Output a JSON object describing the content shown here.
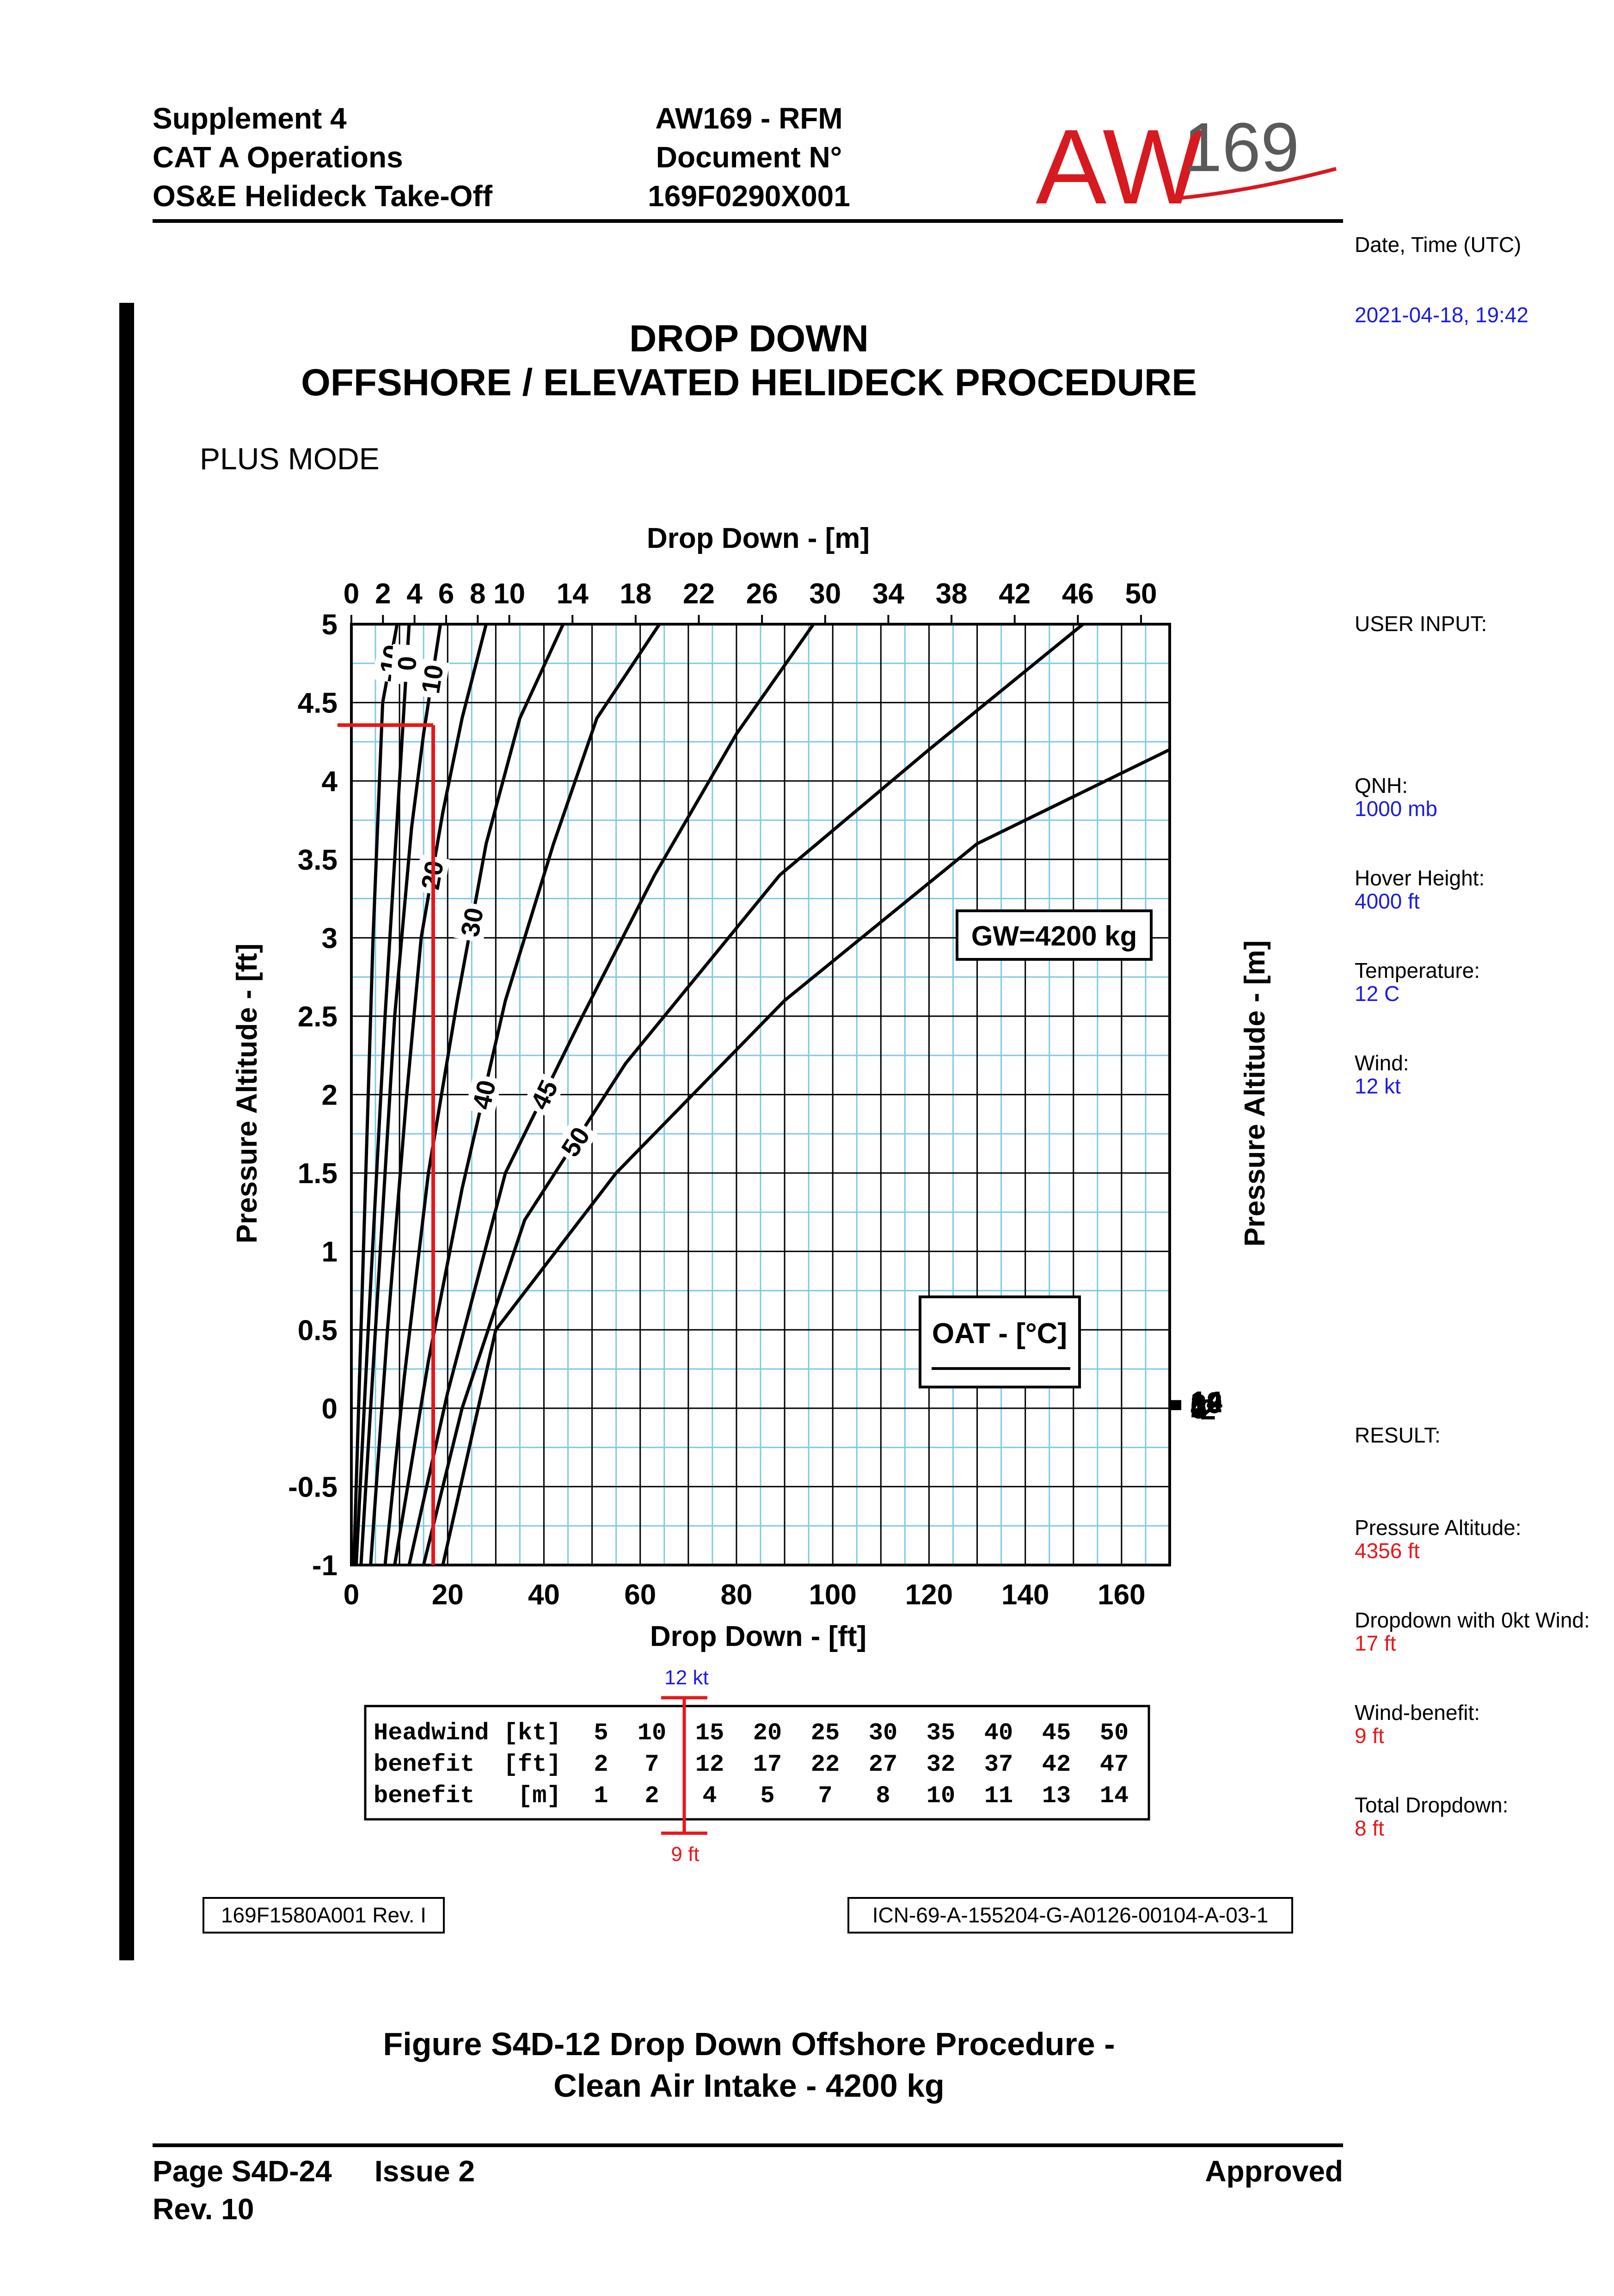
{
  "header": {
    "left": [
      "Supplement 4",
      "CAT A Operations",
      "OS&E Helideck Take-Off"
    ],
    "center": [
      "AW169 - RFM",
      "Document N°",
      "169F0290X001"
    ],
    "logo_main": "AW",
    "logo_sub": "169"
  },
  "chart_title": {
    "line1": "DROP DOWN",
    "line2": "OFFSHORE / ELEVATED HELIDECK PROCEDURE",
    "mode": "PLUS MODE"
  },
  "sidebar": {
    "date_label": "Date, Time (UTC)",
    "date_value": "2021-04-18, 19:42",
    "user_input_label": "USER INPUT:",
    "qnh_label": "QNH:",
    "qnh_value": "1000 mb",
    "hover_label": "Hover Height:",
    "hover_value": "4000 ft",
    "temp_label": "Temperature:",
    "temp_value": "12 C",
    "wind_label": "Wind:",
    "wind_value": "12 kt",
    "result_label": "RESULT:",
    "pa_label": "Pressure Altitude:",
    "pa_value": "4356 ft",
    "dd0_label": "Dropdown with 0kt Wind:",
    "dd0_value": "17 ft",
    "wb_label": "Wind-benefit:",
    "wb_value": "9 ft",
    "total_label": "Total Dropdown:",
    "total_value": "8 ft"
  },
  "headwind_table": {
    "rows": [
      {
        "label": "Headwind [kt]",
        "values": [
          "5",
          "10",
          "15",
          "20",
          "25",
          "30",
          "35",
          "40",
          "45",
          "50"
        ]
      },
      {
        "label": "benefit  [ft]",
        "values": [
          "2",
          "7",
          "12",
          "17",
          "22",
          "27",
          "32",
          "37",
          "42",
          "47"
        ]
      },
      {
        "label": "benefit   [m]",
        "values": [
          "1",
          "2",
          "4",
          "5",
          "7",
          "8",
          "10",
          "11",
          "13",
          "14"
        ]
      }
    ],
    "marker_top_label": "12 kt",
    "marker_bottom_label": "9 ft"
  },
  "refs": {
    "left": "169F1580A001 Rev. I",
    "right": "ICN-69-A-155204-G-A0126-00104-A-03-1"
  },
  "figure_caption": {
    "line1": "Figure S4D-12  Drop Down Offshore Procedure -",
    "line2": "Clean Air Intake - 4200 kg"
  },
  "footer": {
    "page": "Page S4D-24",
    "issue": "Issue 2",
    "rev": "Rev. 10",
    "status": "Approved"
  },
  "colors": {
    "accent_blue": "#1a1ae6",
    "accent_red": "#e8161b",
    "grid_minor": "#7ec8ea",
    "logo_red": "#d71920"
  },
  "chart_data": {
    "type": "line",
    "top_axis_label": "Drop Down - [m]",
    "xlabel": "Drop Down - [ft]",
    "ylabel": "Pressure Altitude - [ft]",
    "right_axis_label": "Pressure Altitude - [m]",
    "xlim": [
      0,
      170
    ],
    "ylim": [
      -1,
      5
    ],
    "x_ticks": [
      "0",
      "20",
      "40",
      "60",
      "80",
      "100",
      "120",
      "140",
      "160"
    ],
    "x_tick_values": [
      0,
      20,
      40,
      60,
      80,
      100,
      120,
      140,
      160
    ],
    "y_ticks": [
      "-1",
      "-0.5",
      "0",
      "0.5",
      "1",
      "1.5",
      "2",
      "2.5",
      "3",
      "3.5",
      "4",
      "4.5",
      "5"
    ],
    "y_tick_values": [
      -1,
      -0.5,
      0,
      0.5,
      1,
      1.5,
      2,
      2.5,
      3,
      3.5,
      4,
      4.5,
      5
    ],
    "top_ticks": [
      "0",
      "2",
      "4",
      "6",
      "8",
      "10",
      "14",
      "18",
      "22",
      "26",
      "30",
      "34",
      "38",
      "42",
      "46",
      "50"
    ],
    "top_tick_values": [
      0,
      2,
      4,
      6,
      8,
      10,
      14,
      18,
      22,
      26,
      30,
      34,
      38,
      42,
      46,
      50
    ],
    "right_ticks": [
      "-2",
      "0",
      "2",
      "4",
      "6",
      "8",
      "10",
      "12",
      "14"
    ],
    "right_tick_values": [
      -2,
      0,
      2,
      4,
      6,
      8,
      10,
      12,
      14
    ],
    "gw_label": "GW=4200 kg",
    "legend_title": "OAT - [°C]",
    "series": [
      {
        "name": "-10",
        "x": [
          0.5,
          2.5,
          4.5,
          6.5,
          9.5
        ],
        "y": [
          -1,
          1,
          3,
          4.5,
          5
        ]
      },
      {
        "name": "0",
        "x": [
          1,
          3.5,
          7,
          10,
          11,
          12
        ],
        "y": [
          -1,
          0.5,
          2.5,
          4,
          4.5,
          5
        ]
      },
      {
        "name": "10",
        "x": [
          2,
          5,
          9,
          12.5,
          15,
          18.5
        ],
        "y": [
          -1,
          0.5,
          2.5,
          3.7,
          4.3,
          5
        ]
      },
      {
        "name": "20",
        "x": [
          4,
          7.5,
          11.5,
          14.5,
          19,
          23,
          28
        ],
        "y": [
          -1,
          0.5,
          2,
          3,
          3.8,
          4.4,
          5
        ]
      },
      {
        "name": "30",
        "x": [
          7,
          11,
          16,
          22,
          28,
          35,
          44
        ],
        "y": [
          -1,
          0.2,
          1.5,
          2.6,
          3.6,
          4.4,
          5
        ]
      },
      {
        "name": "40",
        "x": [
          9,
          16,
          23,
          32,
          42,
          51,
          64
        ],
        "y": [
          -1,
          0.3,
          1.4,
          2.6,
          3.6,
          4.4,
          5
        ]
      },
      {
        "name": "45",
        "x": [
          12,
          20,
          32,
          48,
          63,
          80,
          96
        ],
        "y": [
          -1,
          0.1,
          1.5,
          2.5,
          3.4,
          4.3,
          5
        ]
      },
      {
        "name": "50",
        "x": [
          15,
          23,
          36,
          57,
          89,
          120,
          152
        ],
        "y": [
          -1,
          0,
          1.2,
          2.2,
          3.4,
          4.2,
          5
        ]
      },
      {
        "name": "",
        "x": [
          19,
          30,
          55,
          90,
          130,
          170
        ],
        "y": [
          -1,
          0.5,
          1.5,
          2.6,
          3.6,
          4.2
        ]
      }
    ],
    "solution_path": {
      "pressure_altitude_kft": 4.356,
      "dropdown_ft": 17
    }
  }
}
